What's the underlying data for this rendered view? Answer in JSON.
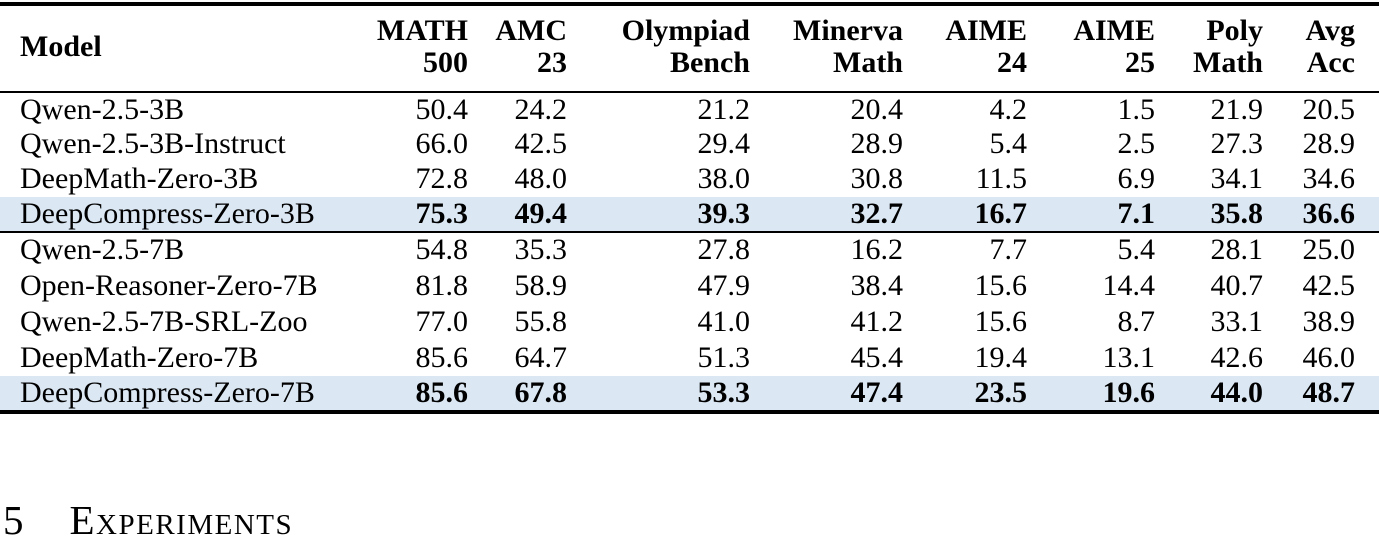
{
  "table": {
    "highlight_color": "#dbe8f4",
    "columns": [
      {
        "label": "Model"
      },
      {
        "label": "MATH\n500"
      },
      {
        "label": "AMC\n23"
      },
      {
        "label": "Olympiad\nBench"
      },
      {
        "label": "Minerva\nMath"
      },
      {
        "label": "AIME\n24"
      },
      {
        "label": "AIME\n25"
      },
      {
        "label": "Poly\nMath"
      },
      {
        "label": "Avg\nAcc"
      }
    ],
    "groups": [
      {
        "rows": [
          {
            "model": "Qwen-2.5-3B",
            "values": [
              "50.4",
              "24.2",
              "21.2",
              "20.4",
              "4.2",
              "1.5",
              "21.9",
              "20.5"
            ],
            "highlight": false
          },
          {
            "model": "Qwen-2.5-3B-Instruct",
            "values": [
              "66.0",
              "42.5",
              "29.4",
              "28.9",
              "5.4",
              "2.5",
              "27.3",
              "28.9"
            ],
            "highlight": false
          },
          {
            "model": "DeepMath-Zero-3B",
            "values": [
              "72.8",
              "48.0",
              "38.0",
              "30.8",
              "11.5",
              "6.9",
              "34.1",
              "34.6"
            ],
            "highlight": false
          },
          {
            "model": "DeepCompress-Zero-3B",
            "values": [
              "75.3",
              "49.4",
              "39.3",
              "32.7",
              "16.7",
              "7.1",
              "35.8",
              "36.6"
            ],
            "highlight": true
          }
        ]
      },
      {
        "rows": [
          {
            "model": "Qwen-2.5-7B",
            "values": [
              "54.8",
              "35.3",
              "27.8",
              "16.2",
              "7.7",
              "5.4",
              "28.1",
              "25.0"
            ],
            "highlight": false
          },
          {
            "model": "Open-Reasoner-Zero-7B",
            "values": [
              "81.8",
              "58.9",
              "47.9",
              "38.4",
              "15.6",
              "14.4",
              "40.7",
              "42.5"
            ],
            "highlight": false
          },
          {
            "model": "Qwen-2.5-7B-SRL-Zoo",
            "values": [
              "77.0",
              "55.8",
              "41.0",
              "41.2",
              "15.6",
              "8.7",
              "33.1",
              "38.9"
            ],
            "highlight": false
          },
          {
            "model": "DeepMath-Zero-7B",
            "values": [
              "85.6",
              "64.7",
              "51.3",
              "45.4",
              "19.4",
              "13.1",
              "42.6",
              "46.0"
            ],
            "highlight": false
          },
          {
            "model": "DeepCompress-Zero-7B",
            "values": [
              "85.6",
              "67.8",
              "53.3",
              "47.4",
              "23.5",
              "19.6",
              "44.0",
              "48.7"
            ],
            "highlight": true
          }
        ]
      }
    ]
  },
  "section_heading": {
    "number": "5",
    "title": "Experiments"
  }
}
